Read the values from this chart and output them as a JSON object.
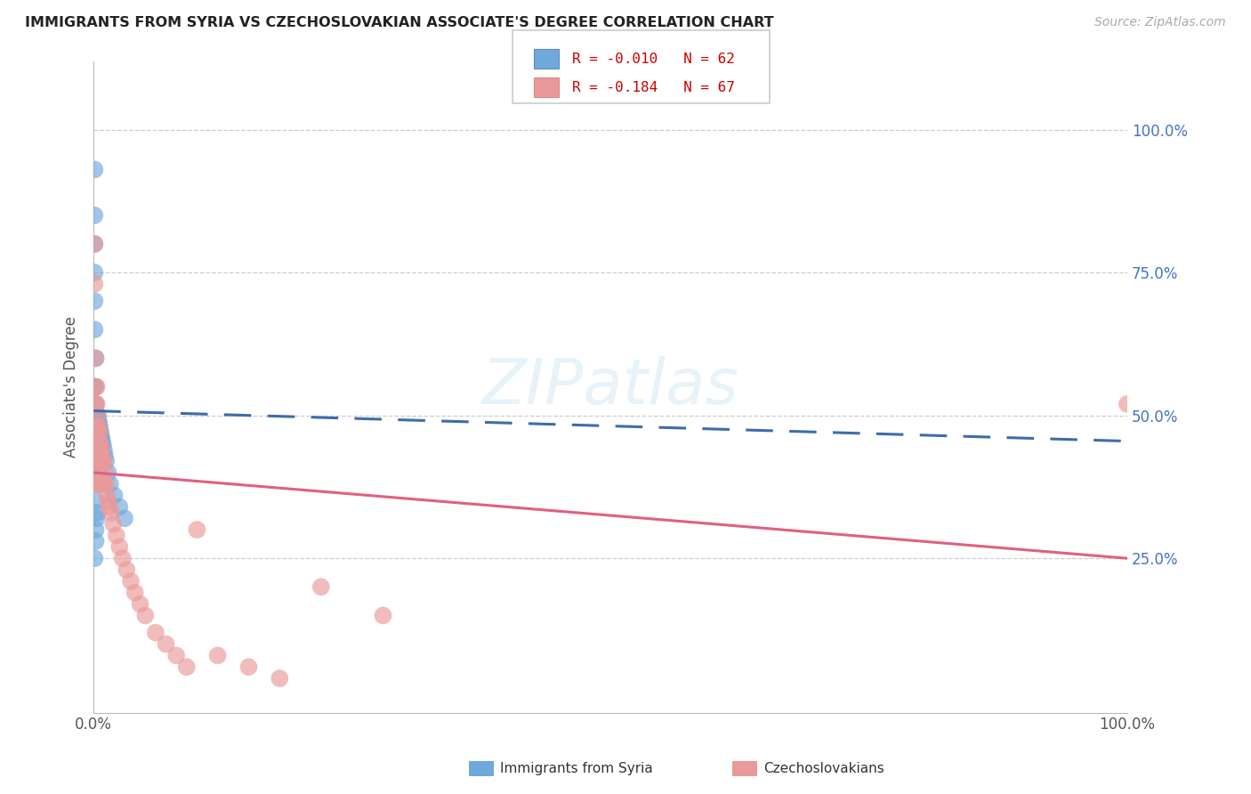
{
  "title": "IMMIGRANTS FROM SYRIA VS CZECHOSLOVAKIAN ASSOCIATE'S DEGREE CORRELATION CHART",
  "source": "Source: ZipAtlas.com",
  "ylabel": "Associate's Degree",
  "color_blue": "#6fa8dc",
  "color_pink": "#ea9999",
  "color_blue_line": "#3d6da8",
  "color_pink_line": "#e06080",
  "watermark": "ZIPatlas",
  "background_color": "#ffffff",
  "legend_r1": "R = -0.010",
  "legend_n1": "N = 62",
  "legend_r2": "R = -0.184",
  "legend_n2": "N = 67",
  "legend_text_color": "#cc0000",
  "right_ytick_color": "#4472c4",
  "yticks": [
    0.25,
    0.5,
    0.75,
    1.0
  ],
  "ytick_labels": [
    "25.0%",
    "50.0%",
    "75.0%",
    "100.0%"
  ],
  "xlim": [
    0.0,
    1.0
  ],
  "ylim": [
    -0.02,
    1.12
  ],
  "xtick_labels": [
    "0.0%",
    "100.0%"
  ],
  "xtick_positions": [
    0.0,
    1.0
  ],
  "syria_x": [
    0.001,
    0.001,
    0.001,
    0.001,
    0.001,
    0.002,
    0.002,
    0.002,
    0.002,
    0.002,
    0.002,
    0.002,
    0.003,
    0.003,
    0.003,
    0.003,
    0.003,
    0.003,
    0.003,
    0.003,
    0.003,
    0.003,
    0.003,
    0.003,
    0.004,
    0.004,
    0.004,
    0.004,
    0.004,
    0.004,
    0.005,
    0.005,
    0.005,
    0.005,
    0.005,
    0.006,
    0.006,
    0.006,
    0.007,
    0.007,
    0.007,
    0.008,
    0.008,
    0.009,
    0.01,
    0.011,
    0.012,
    0.014,
    0.016,
    0.02,
    0.025,
    0.03,
    0.001,
    0.001,
    0.001,
    0.002,
    0.002,
    0.003,
    0.003,
    0.004,
    0.004,
    0.005
  ],
  "syria_y": [
    0.93,
    0.85,
    0.8,
    0.75,
    0.55,
    0.6,
    0.55,
    0.52,
    0.5,
    0.5,
    0.49,
    0.48,
    0.5,
    0.5,
    0.49,
    0.48,
    0.47,
    0.47,
    0.46,
    0.46,
    0.45,
    0.44,
    0.43,
    0.42,
    0.5,
    0.49,
    0.48,
    0.47,
    0.46,
    0.45,
    0.49,
    0.48,
    0.47,
    0.46,
    0.45,
    0.48,
    0.47,
    0.46,
    0.47,
    0.46,
    0.45,
    0.46,
    0.45,
    0.45,
    0.44,
    0.43,
    0.42,
    0.4,
    0.38,
    0.36,
    0.34,
    0.32,
    0.7,
    0.65,
    0.25,
    0.3,
    0.28,
    0.35,
    0.32,
    0.38,
    0.33,
    0.4
  ],
  "czech_x": [
    0.001,
    0.001,
    0.001,
    0.001,
    0.001,
    0.002,
    0.002,
    0.002,
    0.002,
    0.002,
    0.002,
    0.003,
    0.003,
    0.003,
    0.003,
    0.003,
    0.003,
    0.003,
    0.004,
    0.004,
    0.004,
    0.004,
    0.004,
    0.005,
    0.005,
    0.005,
    0.005,
    0.006,
    0.006,
    0.006,
    0.006,
    0.007,
    0.007,
    0.007,
    0.008,
    0.008,
    0.008,
    0.009,
    0.009,
    0.01,
    0.01,
    0.011,
    0.012,
    0.013,
    0.014,
    0.015,
    0.017,
    0.019,
    0.022,
    0.025,
    0.028,
    0.032,
    0.036,
    0.04,
    0.045,
    0.05,
    0.06,
    0.07,
    0.08,
    0.09,
    0.1,
    0.12,
    0.15,
    0.18,
    0.22,
    0.28,
    1.0
  ],
  "czech_y": [
    0.8,
    0.73,
    0.55,
    0.48,
    0.42,
    0.6,
    0.52,
    0.47,
    0.45,
    0.43,
    0.4,
    0.55,
    0.52,
    0.48,
    0.45,
    0.43,
    0.4,
    0.38,
    0.5,
    0.47,
    0.44,
    0.42,
    0.38,
    0.48,
    0.45,
    0.43,
    0.38,
    0.47,
    0.44,
    0.42,
    0.38,
    0.45,
    0.43,
    0.38,
    0.44,
    0.42,
    0.38,
    0.42,
    0.38,
    0.42,
    0.38,
    0.4,
    0.38,
    0.36,
    0.35,
    0.34,
    0.33,
    0.31,
    0.29,
    0.27,
    0.25,
    0.23,
    0.21,
    0.19,
    0.17,
    0.15,
    0.12,
    0.1,
    0.08,
    0.06,
    0.3,
    0.08,
    0.06,
    0.04,
    0.2,
    0.15,
    0.52
  ],
  "syria_line_x": [
    0.0,
    1.0
  ],
  "syria_line_y": [
    0.508,
    0.455
  ],
  "czech_line_x": [
    0.0,
    1.0
  ],
  "czech_line_y": [
    0.4,
    0.25
  ]
}
